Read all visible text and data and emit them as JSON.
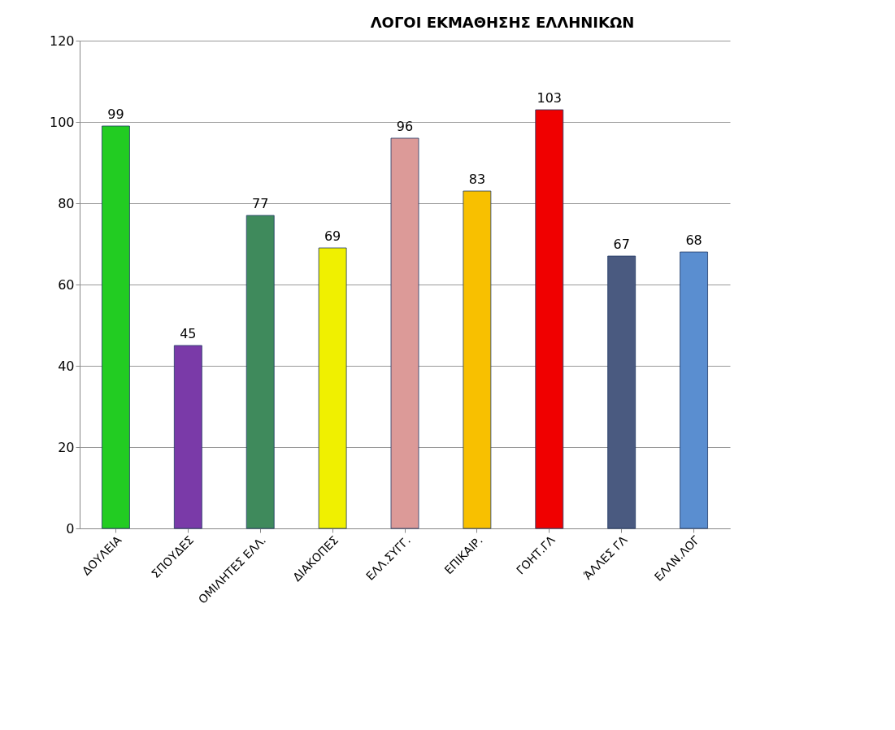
{
  "chart_data": {
    "type": "bar",
    "title": "ΛΟΓΟΙ ΕΚΜΑΘΗΣΗΣ ΕΛΛΗΝΙΚΩΝ",
    "categories": [
      "ΔΟΥΛΕΙΑ",
      "ΣΠΟΥΔΕΣ",
      "ΟΜΙΛΗΤΕΣ ΕΛΛ.",
      "ΔΙΑΚΟΠΕΣ",
      "ΕΛΛ.ΣΥΓΓ.",
      "ΕΠΙΚΑΙΡ.",
      "ΓΟΗΤ.ΓΛ",
      "ΆΛΛΕΣ ΓΛ",
      "ΕΛΛΝ.ΛΟΓ"
    ],
    "values": [
      99,
      45,
      77,
      69,
      96,
      83,
      103,
      67,
      68
    ],
    "colors": [
      "#22cc22",
      "#7a3aa8",
      "#3f8a5c",
      "#f0f000",
      "#dc9a98",
      "#f8c000",
      "#f00000",
      "#4a5a80",
      "#5a8ed0"
    ],
    "ylim": [
      0,
      120
    ],
    "yticks": [
      0,
      20,
      40,
      60,
      80,
      100,
      120
    ],
    "grid": "y",
    "data_labels": true
  }
}
